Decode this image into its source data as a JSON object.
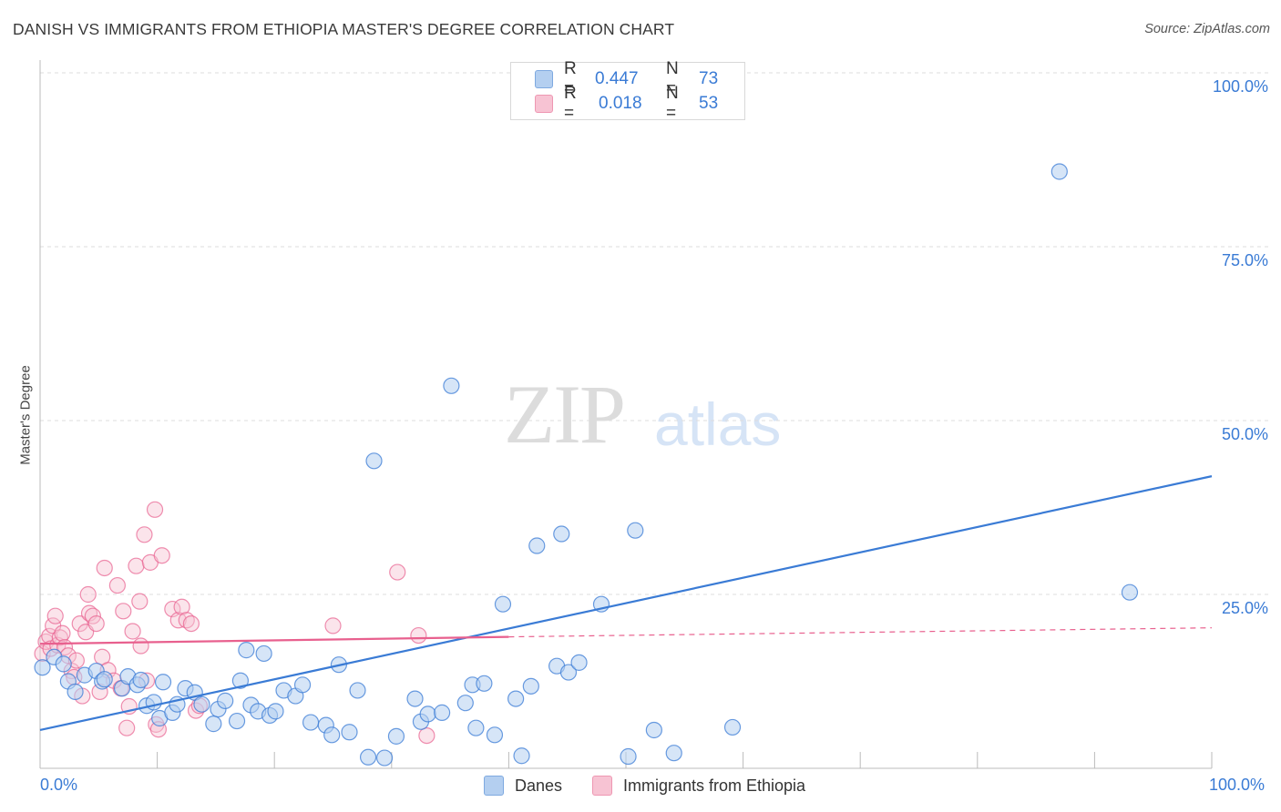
{
  "title": "DANISH VS IMMIGRANTS FROM ETHIOPIA MASTER'S DEGREE CORRELATION CHART",
  "source": "Source: ZipAtlas.com",
  "watermark": {
    "zip": "ZIP",
    "atlas": "atlas"
  },
  "legend_top": {
    "rows": [
      {
        "r_label": "R =",
        "r_value": "0.447",
        "n_label": "N =",
        "n_value": "73",
        "color": "#a9c8ef"
      },
      {
        "r_label": "R =",
        "r_value": "0.018",
        "n_label": "N =",
        "n_value": "53",
        "color": "#f6b8cb"
      }
    ]
  },
  "legend_bottom": [
    {
      "label": "Danes",
      "color": "#a9c8ef"
    },
    {
      "label": "Immigrants from Ethiopia",
      "color": "#f6b8cb"
    }
  ],
  "colors": {
    "blue": "#3a7bd5",
    "blue_fill": "#b4cff0",
    "pink": "#e8608e",
    "pink_fill": "#f7c3d3",
    "grid": "#dddddd"
  },
  "chart_data": {
    "type": "scatter",
    "title": "DANISH VS IMMIGRANTS FROM ETHIOPIA MASTER'S DEGREE CORRELATION CHART",
    "xlabel": "",
    "ylabel": "Master's Degree",
    "xlim": [
      0,
      100
    ],
    "ylim": [
      0,
      100
    ],
    "x_tick_labels": [
      "0.0%",
      "100.0%"
    ],
    "y_tick_labels": [
      "25.0%",
      "50.0%",
      "75.0%",
      "100.0%"
    ],
    "y_ticks": [
      25,
      50,
      75,
      100
    ],
    "grid": true,
    "legend_position": "top-center",
    "series": [
      {
        "name": "Danes",
        "trend": {
          "x": [
            0,
            100
          ],
          "y": [
            5.5,
            42
          ]
        },
        "points": [
          [
            0.2,
            14.5
          ],
          [
            1.2,
            16
          ],
          [
            2,
            15
          ],
          [
            2.4,
            12.5
          ],
          [
            3,
            11
          ],
          [
            3.8,
            13.4
          ],
          [
            4.8,
            14
          ],
          [
            5.3,
            12.5
          ],
          [
            5.5,
            12.8
          ],
          [
            7,
            11.5
          ],
          [
            7.5,
            13.2
          ],
          [
            8.3,
            12
          ],
          [
            8.6,
            12.7
          ],
          [
            9.1,
            9
          ],
          [
            9.7,
            9.5
          ],
          [
            10.2,
            7.2
          ],
          [
            10.5,
            12.4
          ],
          [
            11.3,
            8
          ],
          [
            11.7,
            9.2
          ],
          [
            12.4,
            11.5
          ],
          [
            13.2,
            10.9
          ],
          [
            13.8,
            9.2
          ],
          [
            14.8,
            6.4
          ],
          [
            15.2,
            8.5
          ],
          [
            15.8,
            9.7
          ],
          [
            16.8,
            6.8
          ],
          [
            17.1,
            12.6
          ],
          [
            17.6,
            17
          ],
          [
            18,
            9.1
          ],
          [
            18.6,
            8.2
          ],
          [
            19.1,
            16.5
          ],
          [
            19.6,
            7.6
          ],
          [
            20.1,
            8.2
          ],
          [
            20.8,
            11.2
          ],
          [
            21.8,
            10.4
          ],
          [
            22.4,
            12
          ],
          [
            23.1,
            6.6
          ],
          [
            24.4,
            6.2
          ],
          [
            24.9,
            4.8
          ],
          [
            25.5,
            14.9
          ],
          [
            26.4,
            5.2
          ],
          [
            27.1,
            11.2
          ],
          [
            28,
            1.6
          ],
          [
            28.5,
            44.2
          ],
          [
            29.4,
            1.5
          ],
          [
            30.4,
            4.6
          ],
          [
            32,
            10
          ],
          [
            32.5,
            6.7
          ],
          [
            33.1,
            7.8
          ],
          [
            34.3,
            8
          ],
          [
            35.1,
            55
          ],
          [
            36.3,
            9.4
          ],
          [
            36.9,
            12
          ],
          [
            37.2,
            5.8
          ],
          [
            37.9,
            12.2
          ],
          [
            38.8,
            4.8
          ],
          [
            39.5,
            23.6
          ],
          [
            40.6,
            10
          ],
          [
            41.1,
            1.8
          ],
          [
            41.9,
            11.8
          ],
          [
            42.4,
            32
          ],
          [
            44.1,
            14.7
          ],
          [
            44.5,
            33.7
          ],
          [
            45.1,
            13.8
          ],
          [
            46,
            15.2
          ],
          [
            47.9,
            23.6
          ],
          [
            50.2,
            1.7
          ],
          [
            50.8,
            34.2
          ],
          [
            52.4,
            5.5
          ],
          [
            54.1,
            2.2
          ],
          [
            59.1,
            5.9
          ],
          [
            87,
            85.8
          ],
          [
            93,
            25.3
          ]
        ]
      },
      {
        "name": "Immigrants from Ethiopia",
        "trend": {
          "x": [
            0,
            40,
            100
          ],
          "y": [
            17.9,
            18.9,
            20.2
          ]
        },
        "points": [
          [
            0.2,
            16.5
          ],
          [
            0.5,
            18.2
          ],
          [
            0.8,
            19
          ],
          [
            0.9,
            17.2
          ],
          [
            1.1,
            20.5
          ],
          [
            1.3,
            21.9
          ],
          [
            1.5,
            17.7
          ],
          [
            1.7,
            18.8
          ],
          [
            1.9,
            19.4
          ],
          [
            2.1,
            17.4
          ],
          [
            2.4,
            16.2
          ],
          [
            2.7,
            14
          ],
          [
            2.9,
            13.1
          ],
          [
            3.1,
            15.5
          ],
          [
            3.4,
            20.8
          ],
          [
            3.6,
            10.4
          ],
          [
            3.9,
            19.6
          ],
          [
            4.1,
            25
          ],
          [
            4.2,
            22.3
          ],
          [
            4.5,
            21.9
          ],
          [
            4.8,
            20.8
          ],
          [
            5.1,
            11
          ],
          [
            5.3,
            16
          ],
          [
            5.5,
            28.8
          ],
          [
            5.8,
            14.1
          ],
          [
            6.3,
            12.6
          ],
          [
            6.6,
            26.3
          ],
          [
            6.9,
            11.5
          ],
          [
            7.1,
            22.6
          ],
          [
            7.4,
            5.8
          ],
          [
            7.6,
            8.9
          ],
          [
            7.9,
            19.7
          ],
          [
            8.2,
            29.1
          ],
          [
            8.5,
            24
          ],
          [
            8.6,
            17.6
          ],
          [
            8.9,
            33.6
          ],
          [
            9.1,
            12.6
          ],
          [
            9.4,
            29.6
          ],
          [
            9.8,
            37.2
          ],
          [
            9.9,
            6.3
          ],
          [
            10.1,
            5.6
          ],
          [
            10.4,
            30.6
          ],
          [
            11.3,
            22.9
          ],
          [
            11.8,
            21.3
          ],
          [
            12.1,
            23.2
          ],
          [
            12.5,
            21.3
          ],
          [
            12.9,
            20.8
          ],
          [
            13.3,
            8.3
          ],
          [
            13.6,
            9
          ],
          [
            25,
            20.5
          ],
          [
            30.5,
            28.2
          ],
          [
            32.3,
            19.1
          ],
          [
            33,
            4.7
          ]
        ]
      }
    ]
  }
}
